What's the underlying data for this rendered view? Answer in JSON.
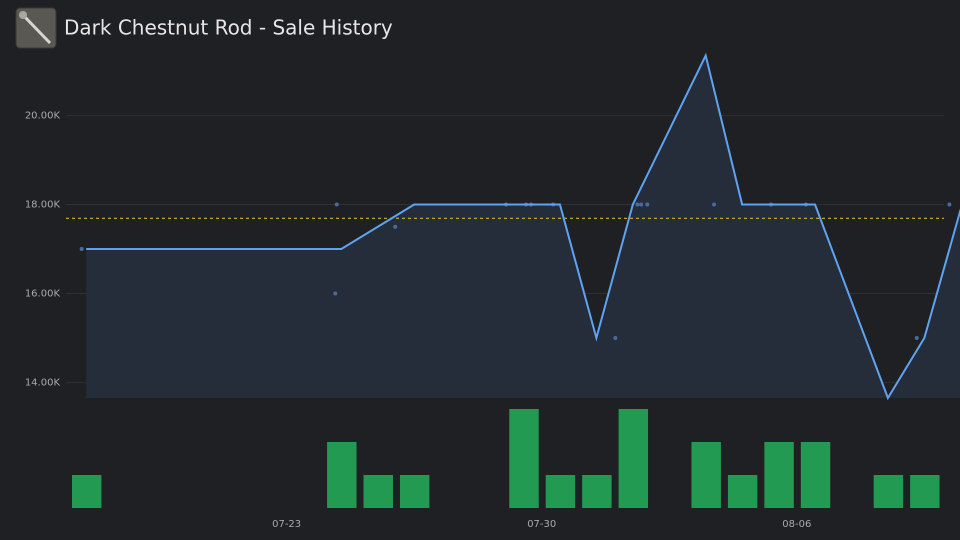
{
  "chart_data": [
    {
      "type": "line",
      "title": "Dark Chestnut Rod - Sale History",
      "xlim": [
        "07-17",
        "08-11"
      ],
      "ylim": [
        13650,
        21700
      ],
      "yticks": [
        {
          "value": 14000,
          "label": "14.00K"
        },
        {
          "value": 16000,
          "label": "16.00K"
        },
        {
          "value": 18000,
          "label": "18.00K"
        },
        {
          "value": 20000,
          "label": "20.00K"
        }
      ],
      "grid": true,
      "line": {
        "color": "#5ea3f2",
        "area_color": "#262d3a",
        "x": [
          "07-17 12:00",
          "07-24 12:00",
          "07-26 12:00",
          "07-30 12:00",
          "07-31 12:00",
          "08-01 12:00",
          "08-03 12:00",
          "08-04 12:00",
          "08-06 12:00",
          "08-08 12:00",
          "08-09 12:00",
          "08-10 12:00"
        ],
        "values": [
          17000,
          17000,
          18000,
          18000,
          15000,
          18000,
          21350,
          18000,
          18000,
          13650,
          15000,
          17900
        ]
      },
      "points": {
        "color": "#4a6a9c",
        "x": [
          "07-17 09:00",
          "07-24 09:00",
          "07-24 08:00",
          "07-25 23:30",
          "07-29 00:30",
          "07-29 13:40",
          "07-29 17:00",
          "07-30 07:30",
          "08-01 00:30",
          "08-01 15:00",
          "08-01 17:30",
          "08-01 21:30",
          "08-03 17:30",
          "08-05 07:00",
          "08-06 06:00",
          "08-09 07:00",
          "08-10 04:30"
        ],
        "values": [
          17000,
          18000,
          16000,
          17500,
          18000,
          18000,
          18000,
          18000,
          15000,
          18000,
          18000,
          18000,
          18000,
          18000,
          18000,
          15000,
          18000
        ]
      },
      "reference_line": {
        "value": 17690,
        "color": "#d6b21e"
      }
    },
    {
      "type": "bar",
      "xlim": [
        "07-17",
        "08-11"
      ],
      "ylim": [
        0,
        3
      ],
      "color": "#239a51",
      "x": [
        "07-17",
        "07-24",
        "07-25",
        "07-26",
        "07-29",
        "07-30",
        "07-31",
        "08-01",
        "08-03",
        "08-04",
        "08-05",
        "08-06",
        "08-08",
        "08-09"
      ],
      "values": [
        1,
        2,
        1,
        1,
        3,
        1,
        1,
        3,
        2,
        1,
        2,
        2,
        1,
        1
      ],
      "xticks": [
        "07-23",
        "07-30",
        "08-06"
      ]
    }
  ]
}
